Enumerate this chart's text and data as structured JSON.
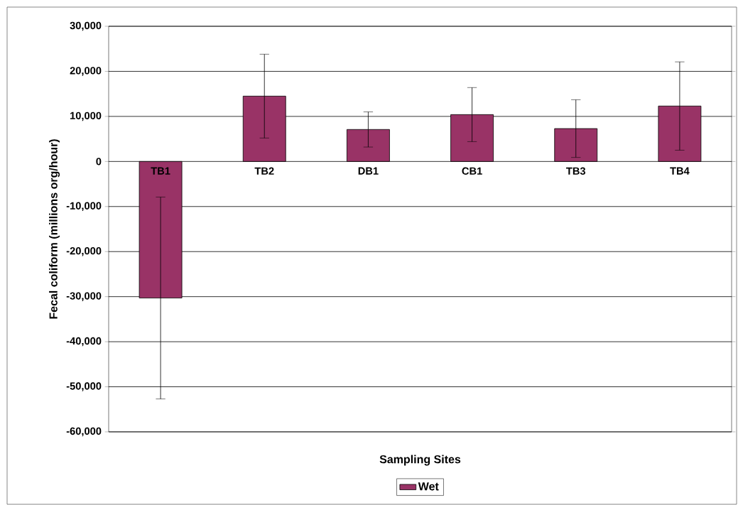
{
  "chart_data": {
    "type": "bar",
    "xlabel": "Sampling Sites",
    "ylabel": "Fecal coliform (millions org/hour)",
    "categories": [
      "TB1",
      "TB2",
      "DB1",
      "CB1",
      "TB3",
      "TB4"
    ],
    "series": [
      {
        "name": "Wet",
        "color": "#993366",
        "values": [
          -30300,
          14500,
          7100,
          10400,
          7300,
          12300
        ],
        "errors": [
          22400,
          9300,
          3900,
          6000,
          6400,
          9800
        ]
      }
    ],
    "ylim": [
      -60000,
      30000
    ],
    "yticks": [
      {
        "value": -60000,
        "label": "-60,000"
      },
      {
        "value": -50000,
        "label": "-50,000"
      },
      {
        "value": -40000,
        "label": "-40,000"
      },
      {
        "value": -30000,
        "label": "-30,000"
      },
      {
        "value": -20000,
        "label": "-20,000"
      },
      {
        "value": -10000,
        "label": "-10,000"
      },
      {
        "value": 0,
        "label": "0"
      },
      {
        "value": 10000,
        "label": "10,000"
      },
      {
        "value": 20000,
        "label": "20,000"
      },
      {
        "value": 30000,
        "label": "30,000"
      }
    ],
    "grid": "y",
    "legend": "bottom"
  }
}
